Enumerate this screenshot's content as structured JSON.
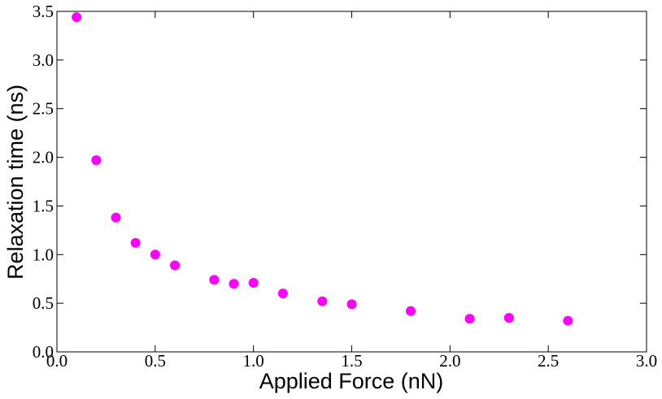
{
  "chart_data": {
    "type": "scatter",
    "xlabel": "Applied Force (nN)",
    "ylabel": "Relaxation time (ns)",
    "color": "#ff00ff",
    "x": [
      0.1,
      0.2,
      0.3,
      0.4,
      0.5,
      0.6,
      0.8,
      0.9,
      1.0,
      1.15,
      1.35,
      1.5,
      1.8,
      2.1,
      2.3,
      2.6
    ],
    "values": [
      3.44,
      1.97,
      1.38,
      1.12,
      1.0,
      0.89,
      0.74,
      0.7,
      0.71,
      0.6,
      0.52,
      0.49,
      0.42,
      0.34,
      0.35,
      0.32
    ],
    "xlim": [
      0,
      3
    ],
    "ylim": [
      0,
      3.5
    ],
    "xticks": [
      {
        "value": 0,
        "label": "0.0"
      },
      0.5,
      {
        "value": 1,
        "label": "1.0"
      },
      1.5,
      {
        "value": 2,
        "label": "2.0"
      },
      2.5,
      {
        "value": 3,
        "label": "3.0"
      }
    ],
    "yticks": [
      {
        "value": 0,
        "label": "0.0"
      },
      0.5,
      {
        "value": 1,
        "label": "1.0"
      },
      1.5,
      {
        "value": 2,
        "label": "2.0"
      },
      2.5,
      {
        "value": 3,
        "label": "3.0"
      },
      3.5
    ]
  }
}
